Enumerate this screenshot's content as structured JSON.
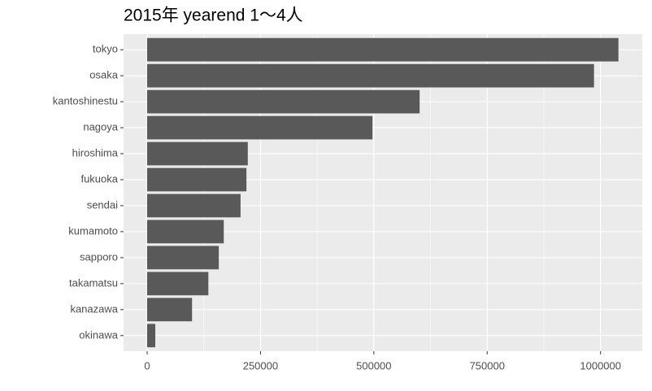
{
  "chart_data": {
    "type": "hbar",
    "title": "2015年 yearend 1～4人",
    "categories": [
      "tokyo",
      "osaka",
      "kantoshinestu",
      "nagoya",
      "hiroshima",
      "fukuoka",
      "sendai",
      "kumamoto",
      "sapporo",
      "takamatsu",
      "kanazawa",
      "okinawa"
    ],
    "values": [
      1039500,
      985600,
      601000,
      497000,
      222000,
      219000,
      206000,
      169000,
      158000,
      135000,
      99000,
      18000
    ],
    "color": "#595959",
    "xlim": [
      -52000,
      1092000
    ],
    "xticks": [
      0,
      250000,
      500000,
      750000,
      1000000
    ],
    "grid": true
  }
}
